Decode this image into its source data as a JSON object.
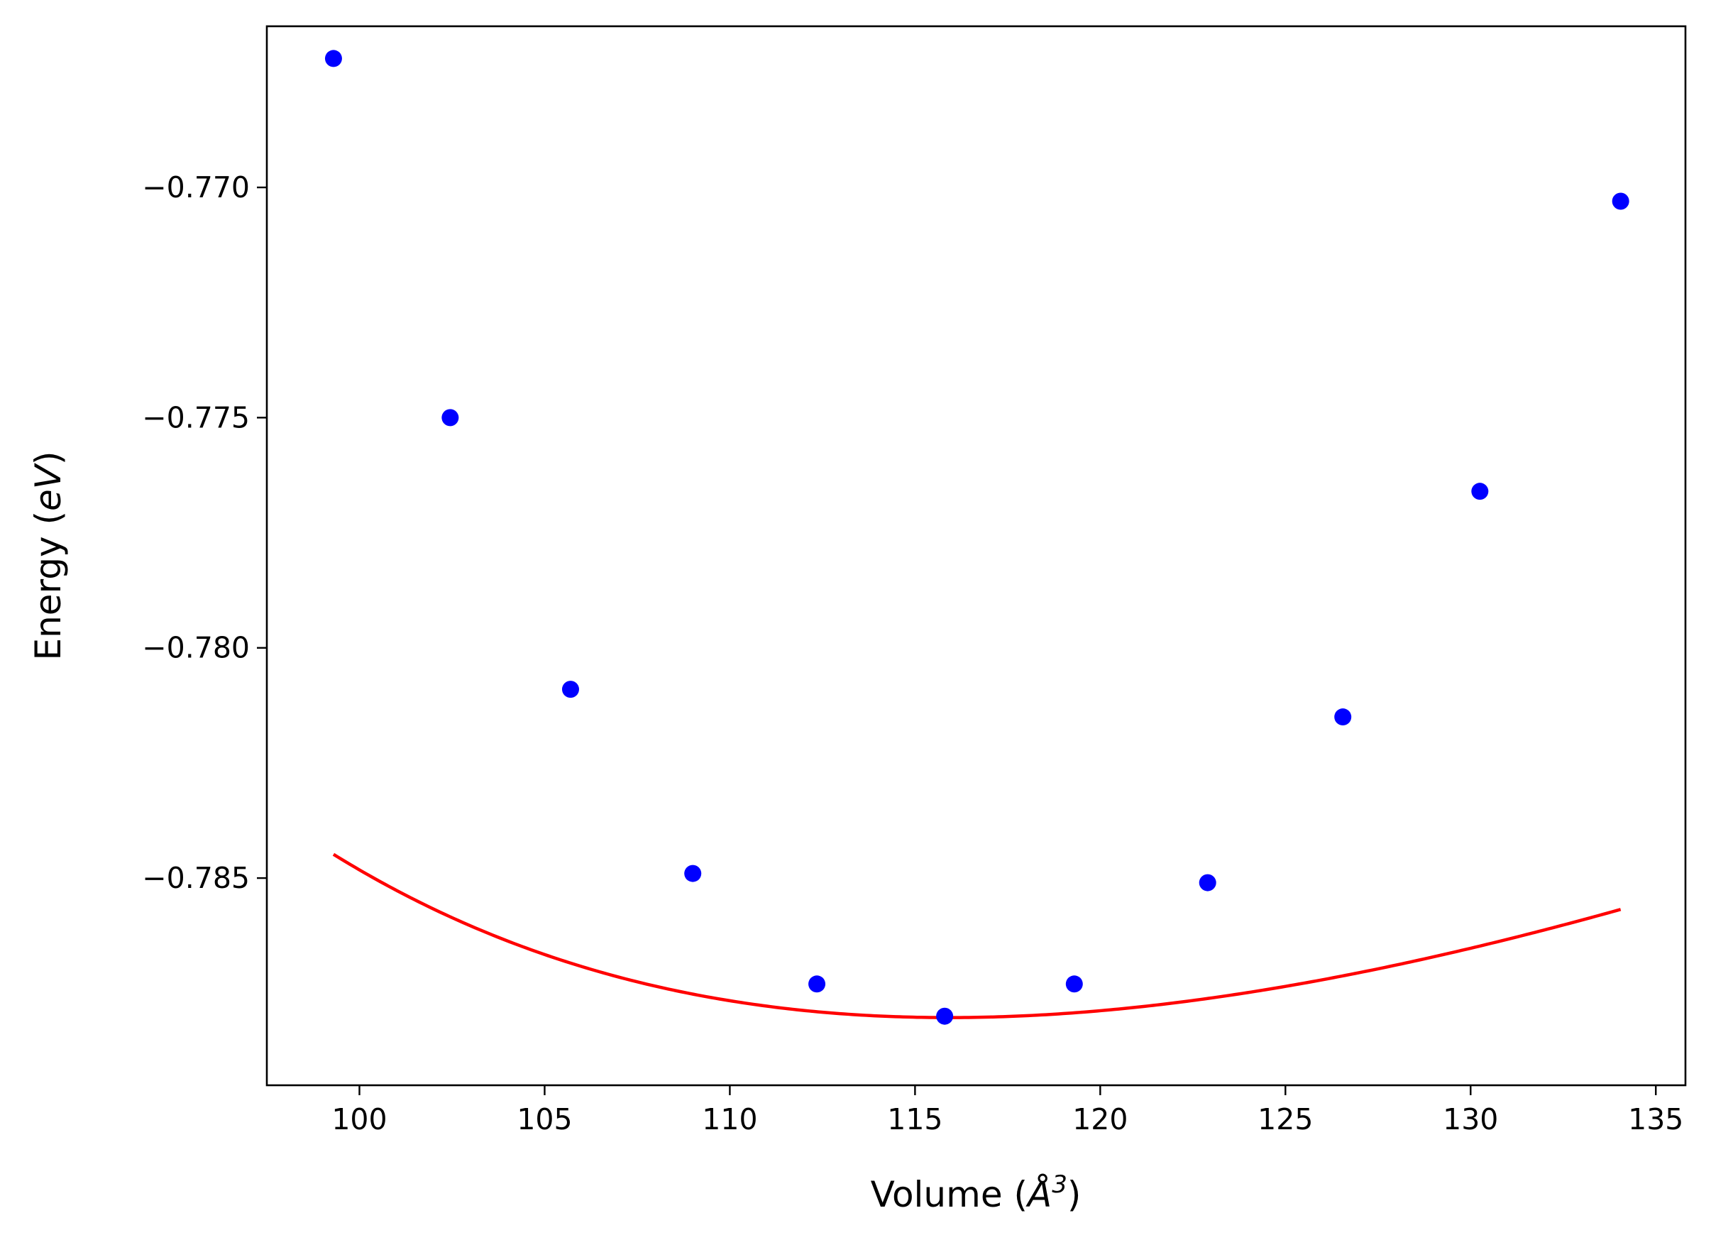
{
  "chart_data": {
    "type": "scatter",
    "xlabel": "Volume (Å³)",
    "xlabel_parts": {
      "prefix": "Volume (",
      "symbol": "Å",
      "exponent": "3",
      "suffix": ")"
    },
    "ylabel": "Energy (eV)",
    "ylabel_parts": {
      "prefix": "Energy (",
      "unit": "eV",
      "suffix": ")"
    },
    "xlim": [
      97.5,
      135.8
    ],
    "ylim": [
      -0.7895,
      -0.7665
    ],
    "x_ticks": [
      100,
      105,
      110,
      115,
      120,
      125,
      130,
      135
    ],
    "x_tick_labels": [
      "100",
      "105",
      "110",
      "115",
      "120",
      "125",
      "130",
      "135"
    ],
    "y_ticks": [
      -0.77,
      -0.775,
      -0.78,
      -0.785
    ],
    "y_tick_labels": [
      "−0.770",
      "−0.775",
      "−0.780",
      "−0.785"
    ],
    "grid": false,
    "series": [
      {
        "kind": "points",
        "color": "#0000ff",
        "x": [
          99.3,
          102.45,
          105.7,
          109.0,
          112.35,
          115.8,
          119.3,
          122.9,
          126.55,
          130.25,
          134.05
        ],
        "y": [
          -0.7672,
          -0.775,
          -0.7809,
          -0.7849,
          -0.7873,
          -0.788,
          -0.7873,
          -0.7851,
          -0.7815,
          -0.7766,
          -0.7703
        ]
      },
      {
        "kind": "fit",
        "color": "#ff0000",
        "equation": "birch-murnaghan",
        "E0": -0.78803,
        "V0": 115.9,
        "B0": 0.0022,
        "B0prime": 4.9,
        "x_range": [
          99.3,
          134.05
        ]
      }
    ]
  }
}
